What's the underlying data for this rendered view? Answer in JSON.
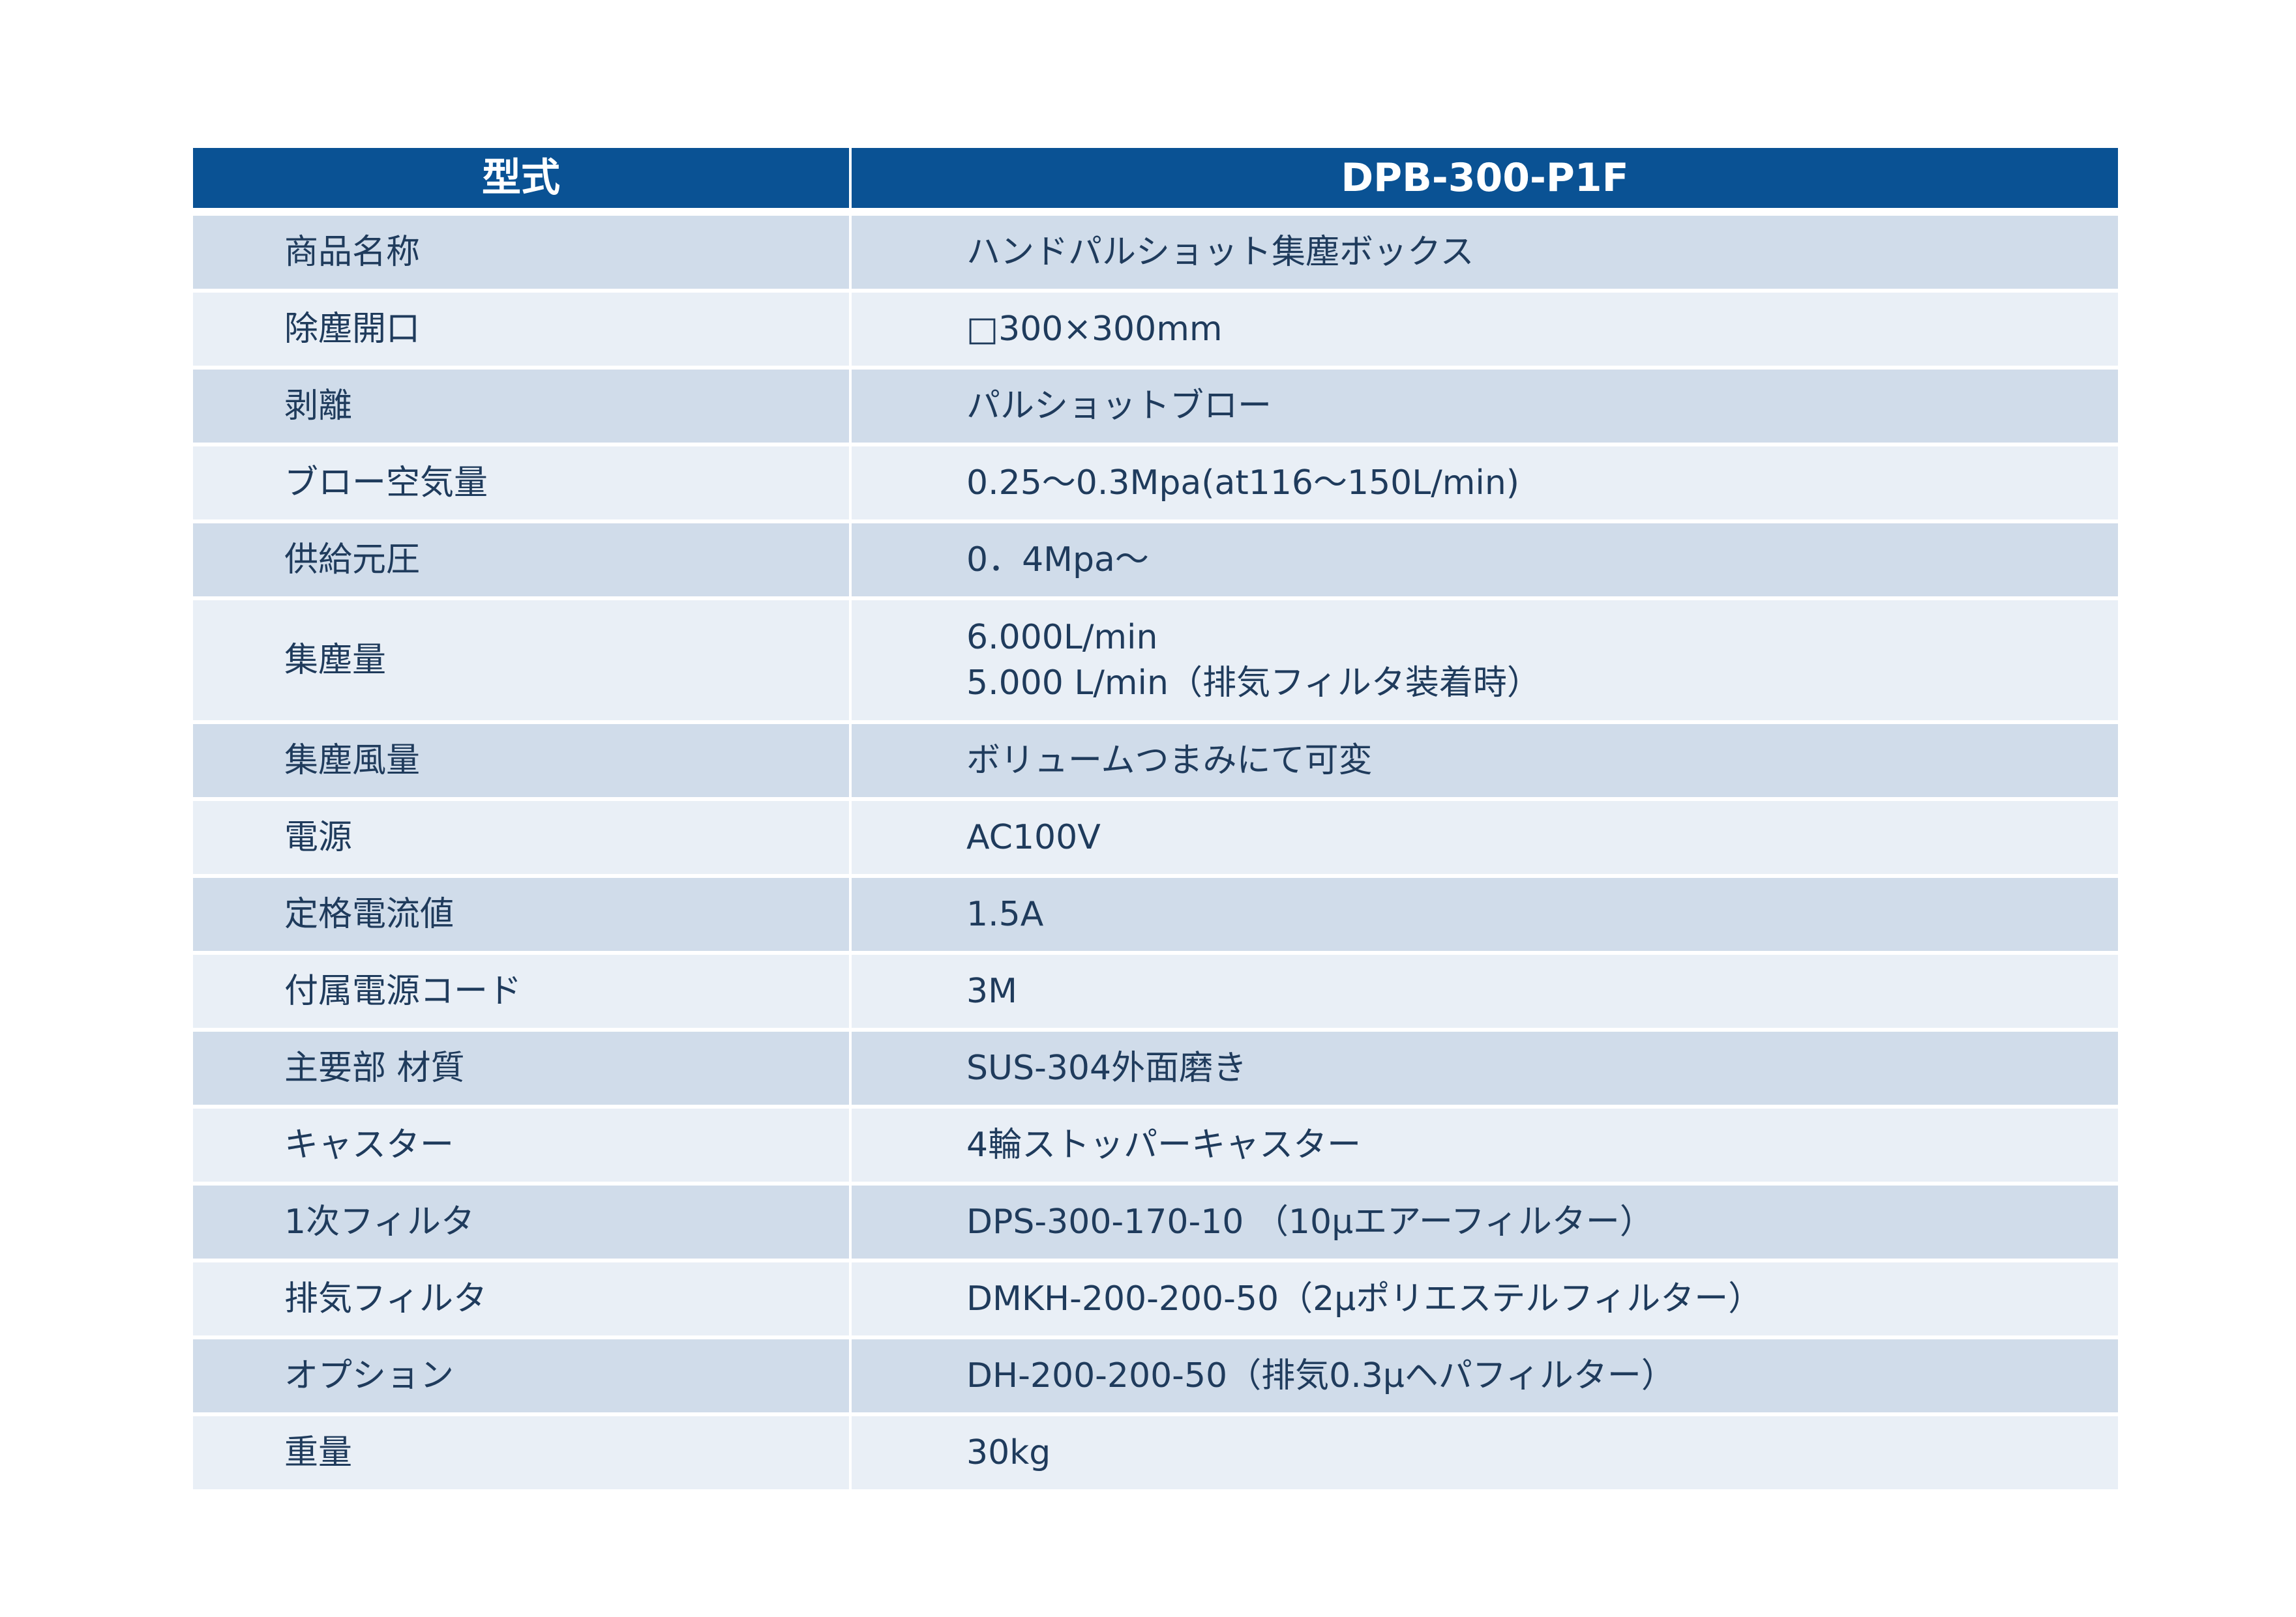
{
  "header": {
    "label": "型式",
    "value": "DPB-300-P1F"
  },
  "rows": [
    {
      "label": "商品名称",
      "value": "ハンドパルショット集塵ボックス"
    },
    {
      "label": "除塵開口",
      "value": "□300×300mm"
    },
    {
      "label": "剥離",
      "value": "パルショットブロー"
    },
    {
      "label": "ブロー空気量",
      "value": "0.25～0.3Mpa(at116～150L/min)"
    },
    {
      "label": "供給元圧",
      "value": "0．4Mpa～"
    },
    {
      "label": "集塵量",
      "value": "6.000L/min",
      "value2": "5.000 L/min（排気フィルタ装着時）"
    },
    {
      "label": "集塵風量",
      "value": "ボリュームつまみにて可変"
    },
    {
      "label": "電源",
      "value": "AC100V"
    },
    {
      "label": "定格電流値",
      "value": "1.5A"
    },
    {
      "label": "付属電源コード",
      "value": "3M"
    },
    {
      "label": "主要部 材質",
      "value": "SUS-304外面磨き"
    },
    {
      "label": "キャスター",
      "value": "4輪ストッパーキャスター"
    },
    {
      "label": "1次フィルタ",
      "value": "DPS-300-170-10 （10μエアーフィルター）"
    },
    {
      "label": "排気フィルタ",
      "value": "DMKH-200-200-50（2μポリエステルフィルター）"
    },
    {
      "label": "オプション",
      "value": "DH-200-200-50（排気0.3μヘパフィルター）"
    },
    {
      "label": "重量",
      "value": "30kg"
    }
  ],
  "colors": {
    "header_bg": "#0a5294",
    "row_dark": "#d0dcea",
    "row_light": "#e9eff6",
    "text": "#1f3b5c"
  }
}
